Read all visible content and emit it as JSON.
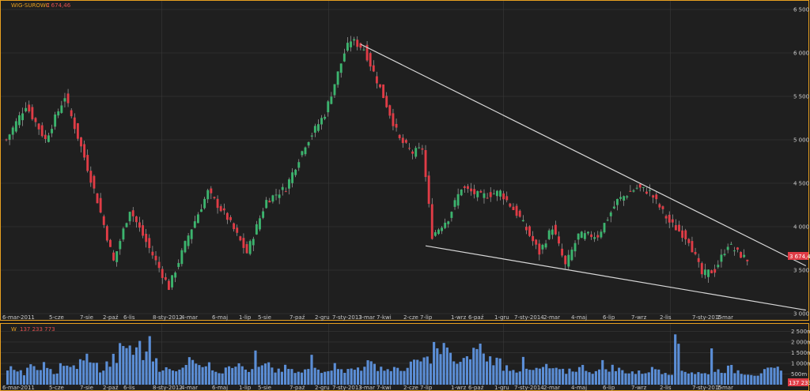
{
  "header": {
    "price_label": "WIG-SUROWC",
    "price_value": "3 674,46",
    "volume_label": "W",
    "volume_value": "137 233 773"
  },
  "colors": {
    "up": "#3cb46e",
    "down": "#e03c46",
    "volume": "#5b8ed6",
    "border": "#e8a020",
    "grid": "#3a3a3a",
    "trend": "#d8d8d8"
  },
  "chart_data": [
    {
      "type": "candlestick",
      "x_tick_labels": [
        "6-mar-2011",
        "5-cze",
        "7-sie",
        "2-paź",
        "6-lis",
        "8-sty-2012",
        "4-mar",
        "6-maj",
        "1-lip",
        "5-sie",
        "7-paź",
        "2-gru",
        "7-sty-2013",
        "3-mar",
        "7-kwi",
        "2-cze",
        "7-lip",
        "1-wrz",
        "6-paź",
        "1-gru",
        "7-sty-2014",
        "2-mar",
        "4-maj",
        "6-lip",
        "7-wrz",
        "2-lis",
        "7-sty-2015",
        "1-mar"
      ],
      "y_tick_labels": [
        "3 000",
        "3 500",
        "4 000",
        "4 500",
        "5 000",
        "5 500",
        "6 000",
        "6 500"
      ],
      "ylim": [
        3000,
        6500
      ],
      "last_value_tag": "3 674,46",
      "key_points": [
        [
          0,
          5000
        ],
        [
          6,
          5400
        ],
        [
          12,
          5000
        ],
        [
          18,
          5500
        ],
        [
          24,
          4800
        ],
        [
          28,
          4300
        ],
        [
          33,
          3600
        ],
        [
          38,
          4200
        ],
        [
          44,
          3750
        ],
        [
          50,
          3300
        ],
        [
          56,
          3900
        ],
        [
          62,
          4400
        ],
        [
          68,
          4100
        ],
        [
          74,
          3700
        ],
        [
          80,
          4300
        ],
        [
          86,
          4450
        ],
        [
          92,
          4950
        ],
        [
          98,
          5300
        ],
        [
          104,
          6000
        ],
        [
          106,
          6150
        ],
        [
          110,
          6050
        ],
        [
          116,
          5500
        ],
        [
          121,
          5000
        ],
        [
          125,
          4850
        ],
        [
          128,
          4900
        ],
        [
          131,
          3900
        ],
        [
          136,
          4100
        ],
        [
          140,
          4450
        ],
        [
          146,
          4350
        ],
        [
          152,
          4400
        ],
        [
          158,
          4100
        ],
        [
          164,
          3700
        ],
        [
          168,
          4000
        ],
        [
          172,
          3550
        ],
        [
          176,
          3900
        ],
        [
          182,
          3900
        ],
        [
          188,
          4300
        ],
        [
          194,
          4450
        ],
        [
          198,
          4400
        ],
        [
          204,
          4050
        ],
        [
          210,
          3850
        ],
        [
          214,
          3450
        ],
        [
          218,
          3500
        ],
        [
          222,
          3800
        ],
        [
          225,
          3700
        ],
        [
          228,
          3620
        ]
      ],
      "trendlines": [
        {
          "from": [
            109,
            6100
          ],
          "to": [
            246,
            3550
          ]
        },
        {
          "from": [
            129,
            3780
          ],
          "to": [
            246,
            3040
          ]
        }
      ]
    },
    {
      "type": "bar",
      "y_tick_labels": [
        "500m",
        "1 000m",
        "1 500m",
        "2 000m",
        "2 500m"
      ],
      "ylim": [
        0,
        2700
      ],
      "base_values": [
        750,
        600,
        550,
        800,
        700,
        900,
        650,
        600,
        1000,
        750,
        850,
        1050,
        1300,
        900,
        700,
        950,
        1200,
        1600,
        1800,
        1500,
        1150,
        1900,
        1250,
        800,
        700,
        600,
        900,
        1100,
        1300,
        1000,
        850,
        750,
        650,
        950,
        1000,
        850,
        700,
        600,
        800,
        900,
        650,
        700,
        750,
        600,
        550,
        650,
        800,
        700,
        750,
        850,
        900,
        650,
        700,
        800,
        1000,
        900,
        850,
        700,
        750,
        650,
        800,
        950,
        1100,
        1150,
        1300,
        1500,
        1700,
        1250,
        1000,
        1100,
        1500,
        1800,
        1300,
        1200,
        1100,
        850,
        800,
        700,
        600,
        650,
        700,
        800,
        750,
        650,
        600,
        700,
        750,
        800,
        650,
        600,
        750,
        800,
        700,
        650,
        600,
        550,
        600,
        700,
        750,
        650,
        600,
        1900,
        700,
        600,
        550,
        500,
        600,
        650,
        700,
        750,
        650,
        600,
        550,
        500,
        600,
        650,
        700,
        600,
        550,
        500,
        450,
        600,
        650,
        700,
        750,
        600,
        550,
        500
      ],
      "spikes": [
        [
          40,
          2050
        ],
        [
          75,
          1600
        ],
        [
          92,
          1400
        ],
        [
          129,
          2000
        ],
        [
          156,
          1300
        ],
        [
          180,
          1150
        ],
        [
          213,
          1700
        ]
      ]
    }
  ]
}
